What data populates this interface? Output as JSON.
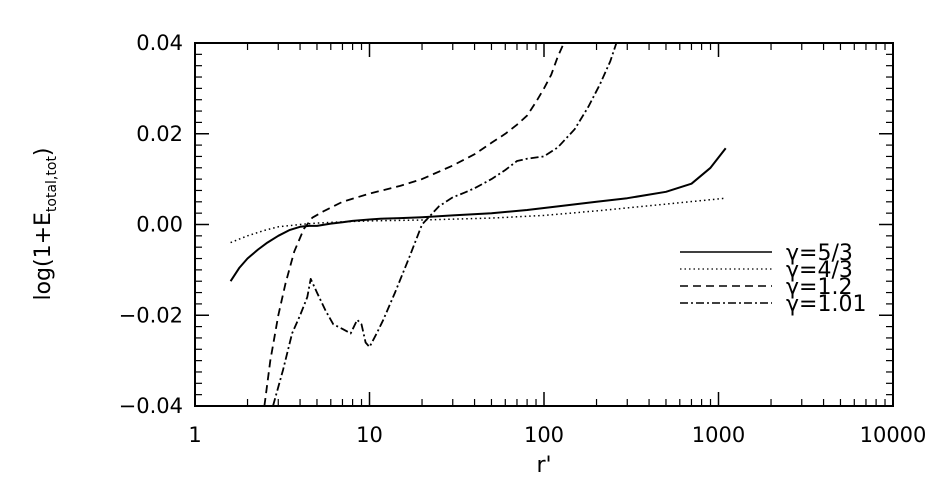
{
  "chart_data": {
    "type": "line",
    "title": "",
    "xlabel": "r'",
    "ylabel": "log(1+E_total,tot)",
    "ylabel_main": "log(1+E",
    "ylabel_sub": "total,tot",
    "ylabel_close": ")",
    "xscale": "log",
    "xlim": [
      1,
      10000
    ],
    "ylim": [
      -0.04,
      0.04
    ],
    "x_ticks": [
      1,
      10,
      100,
      1000,
      10000
    ],
    "x_tick_labels": [
      "1",
      "10",
      "100",
      "1000",
      "10000"
    ],
    "y_ticks": [
      -0.04,
      -0.02,
      0.0,
      0.02,
      0.04
    ],
    "y_tick_labels": [
      "−0.04",
      "−0.02",
      "0.00",
      "0.02",
      "0.04"
    ],
    "grid": false,
    "legend_position": "right",
    "series": [
      {
        "name": "γ=5/3",
        "style": "solid",
        "x": [
          1.6,
          1.8,
          2.0,
          2.3,
          2.6,
          3.0,
          3.5,
          4.0,
          4.5,
          5,
          6,
          7,
          8,
          10,
          12,
          15,
          20,
          30,
          50,
          80,
          120,
          200,
          300,
          500,
          700,
          900,
          1100
        ],
        "y": [
          -0.0125,
          -0.0095,
          -0.0075,
          -0.0055,
          -0.004,
          -0.0025,
          -0.0012,
          -0.0005,
          -0.0003,
          -0.0003,
          0.0002,
          0.0005,
          0.0008,
          0.0011,
          0.0013,
          0.0014,
          0.0016,
          0.002,
          0.0025,
          0.0032,
          0.004,
          0.005,
          0.0058,
          0.0072,
          0.009,
          0.0125,
          0.0168
        ]
      },
      {
        "name": "γ=4/3",
        "style": "dotted",
        "x": [
          1.6,
          2.0,
          2.5,
          3.0,
          4.0,
          5,
          7,
          10,
          20,
          50,
          100,
          200,
          500,
          1100
        ],
        "y": [
          -0.004,
          -0.0025,
          -0.0013,
          -0.0005,
          0.0,
          0.0003,
          0.0006,
          0.0008,
          0.001,
          0.0014,
          0.002,
          0.003,
          0.0045,
          0.0058
        ]
      },
      {
        "name": "γ=1.2",
        "style": "dashed",
        "x": [
          2.5,
          2.7,
          3.0,
          3.3,
          3.7,
          4.2,
          4.7,
          5.5,
          7,
          10,
          15,
          20,
          30,
          40,
          50,
          60,
          70,
          80,
          90,
          100,
          110,
          120,
          130
        ],
        "y": [
          -0.04,
          -0.03,
          -0.02,
          -0.013,
          -0.006,
          -0.001,
          0.0015,
          0.003,
          0.005,
          0.0068,
          0.0085,
          0.01,
          0.013,
          0.0155,
          0.018,
          0.02,
          0.022,
          0.024,
          0.027,
          0.03,
          0.033,
          0.037,
          0.04
        ]
      },
      {
        "name": "γ=1.01",
        "style": "dashdot",
        "x": [
          2.8,
          3.2,
          3.6,
          4.0,
          4.4,
          4.6,
          5.0,
          5.6,
          6.2,
          7.0,
          7.8,
          8.5,
          9.0,
          9.5,
          10.0,
          11,
          12,
          14,
          17,
          20,
          25,
          30,
          35,
          40,
          50,
          60,
          70,
          80,
          100,
          120,
          150,
          180,
          210,
          240,
          260
        ],
        "y": [
          -0.04,
          -0.032,
          -0.024,
          -0.02,
          -0.016,
          -0.012,
          -0.015,
          -0.019,
          -0.022,
          -0.023,
          -0.024,
          -0.021,
          -0.022,
          -0.026,
          -0.027,
          -0.024,
          -0.021,
          -0.015,
          -0.007,
          0.0,
          0.004,
          0.006,
          0.007,
          0.008,
          0.01,
          0.012,
          0.014,
          0.0145,
          0.015,
          0.017,
          0.021,
          0.026,
          0.031,
          0.036,
          0.04
        ]
      }
    ]
  }
}
